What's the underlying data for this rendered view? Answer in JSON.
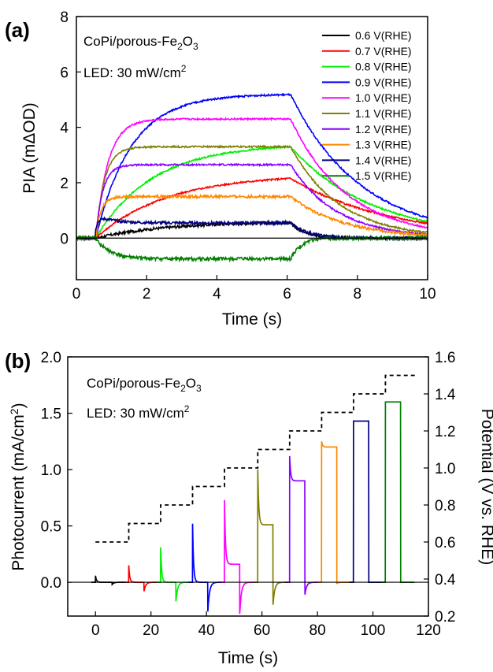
{
  "chart_data": [
    {
      "type": "line",
      "panel_label": "(a)",
      "annotations": [
        "CoPi/porous-Fe2O3",
        "LED: 30 mW/cm2"
      ],
      "xlabel": "Time (s)",
      "ylabel": "PIA (mΔOD)",
      "xlim": [
        0,
        10
      ],
      "ylim": [
        -1.5,
        8
      ],
      "xticks": [
        0,
        2,
        4,
        6,
        8,
        10
      ],
      "yticks": [
        0,
        2,
        4,
        6,
        8
      ],
      "legend_position": "top-right",
      "light_on_s": 0.55,
      "light_off_s": 6.1,
      "series": [
        {
          "name": "0.6 V(RHE)",
          "color": "#000000",
          "plateau": 0.6,
          "tau_rise": 2.0,
          "spike": 0.0,
          "tau_decay": 0.4,
          "noise": 0.05
        },
        {
          "name": "0.7 V(RHE)",
          "color": "#ff0000",
          "plateau": 2.3,
          "tau_rise": 2.0,
          "spike": 0.0,
          "tau_decay": 2.8,
          "noise": 0.03
        },
        {
          "name": "0.8 V(RHE)",
          "color": "#00ee00",
          "plateau": 3.4,
          "tau_rise": 1.6,
          "spike": 0.0,
          "tau_decay": 2.3,
          "noise": 0.03
        },
        {
          "name": "0.9 V(RHE)",
          "color": "#0000ff",
          "plateau": 5.2,
          "tau_rise": 1.0,
          "spike": 0.0,
          "tau_decay": 2.0,
          "noise": 0.03
        },
        {
          "name": "1.0 V(RHE)",
          "color": "#ff00ff",
          "plateau": 4.3,
          "tau_rise": 0.35,
          "spike": 0.0,
          "tau_decay": 1.6,
          "noise": 0.03
        },
        {
          "name": "1.1 V(RHE)",
          "color": "#808000",
          "plateau": 3.3,
          "tau_rise": 0.25,
          "spike": 0.0,
          "tau_decay": 1.4,
          "noise": 0.03
        },
        {
          "name": "1.2 V(RHE)",
          "color": "#8800ff",
          "plateau": 2.65,
          "tau_rise": 0.2,
          "spike": 0.0,
          "tau_decay": 1.3,
          "noise": 0.03
        },
        {
          "name": "1.3 V(RHE)",
          "color": "#ff8800",
          "plateau": 1.5,
          "tau_rise": 0.15,
          "spike": 0.0,
          "tau_decay": 1.5,
          "noise": 0.05
        },
        {
          "name": "1.4 V(RHE)",
          "color": "#000080",
          "plateau": 0.55,
          "tau_rise": 0.1,
          "spike": 0.35,
          "tau_decay": 0.5,
          "noise": 0.05
        },
        {
          "name": "1.5 V(RHE)",
          "color": "#008000",
          "plateau": -0.75,
          "tau_rise": 0.4,
          "spike": 0.0,
          "tau_decay": 0.3,
          "noise": 0.06
        }
      ]
    },
    {
      "type": "line",
      "panel_label": "(b)",
      "annotations": [
        "CoPi/porous-Fe2O3",
        "LED: 30 mW/cm2"
      ],
      "xlabel": "Time (s)",
      "ylabel": "Photocurrent (mA/cm2)",
      "y2label": "Potential (V vs. RHE)",
      "xlim": [
        -10,
        120
      ],
      "ylim": [
        -0.3,
        2.0
      ],
      "y2lim": [
        0.2,
        1.6
      ],
      "xticks": [
        0,
        20,
        40,
        60,
        80,
        100,
        120
      ],
      "yticks": [
        0.0,
        0.5,
        1.0,
        1.5,
        2.0
      ],
      "y2ticks": [
        0.2,
        0.4,
        0.6,
        0.8,
        1.0,
        1.2,
        1.4,
        1.6
      ],
      "pulses": [
        {
          "color": "#000000",
          "on": 0,
          "off": 6,
          "spike": 0.06,
          "steady": 0.0,
          "neg": -0.02
        },
        {
          "color": "#ff0000",
          "on": 12,
          "off": 17.5,
          "spike": 0.15,
          "steady": 0.0,
          "neg": -0.08
        },
        {
          "color": "#00ee00",
          "on": 23.5,
          "off": 29,
          "spike": 0.31,
          "steady": 0.0,
          "neg": -0.17
        },
        {
          "color": "#0000ff",
          "on": 35,
          "off": 40.5,
          "spike": 0.52,
          "steady": 0.0,
          "neg": -0.26
        },
        {
          "color": "#ff00ff",
          "on": 46.5,
          "off": 52,
          "spike": 0.73,
          "steady": 0.16,
          "neg": -0.28
        },
        {
          "color": "#808000",
          "on": 58.5,
          "off": 64,
          "spike": 1.0,
          "steady": 0.51,
          "neg": -0.2
        },
        {
          "color": "#8800ff",
          "on": 70,
          "off": 75.5,
          "spike": 1.12,
          "steady": 0.9,
          "neg": -0.11
        },
        {
          "color": "#ff8800",
          "on": 81.5,
          "off": 87,
          "spike": 1.25,
          "steady": 1.2,
          "neg": -0.01
        },
        {
          "color": "#000080",
          "on": 93,
          "off": 98.5,
          "spike": 1.43,
          "steady": 1.43,
          "neg": 0.0
        },
        {
          "color": "#008000",
          "on": 104.5,
          "off": 110,
          "spike": 1.6,
          "steady": 1.6,
          "neg": 0.0
        }
      ],
      "potential_steps": [
        {
          "start": 0,
          "end": 12,
          "value": 0.6
        },
        {
          "start": 12,
          "end": 23.5,
          "value": 0.7
        },
        {
          "start": 23.5,
          "end": 35,
          "value": 0.8
        },
        {
          "start": 35,
          "end": 46.5,
          "value": 0.9
        },
        {
          "start": 46.5,
          "end": 58.5,
          "value": 1.0
        },
        {
          "start": 58.5,
          "end": 70,
          "value": 1.1
        },
        {
          "start": 70,
          "end": 81.5,
          "value": 1.2
        },
        {
          "start": 81.5,
          "end": 93,
          "value": 1.3
        },
        {
          "start": 93,
          "end": 104.5,
          "value": 1.4
        },
        {
          "start": 104.5,
          "end": 116,
          "value": 1.5
        }
      ]
    }
  ]
}
